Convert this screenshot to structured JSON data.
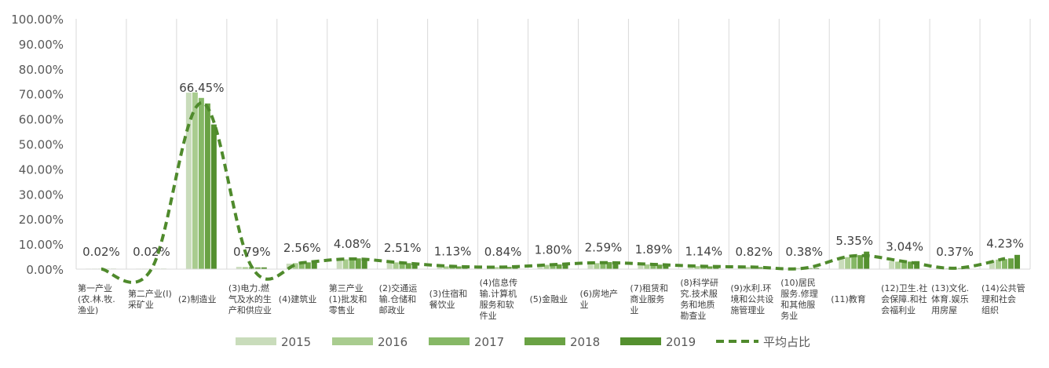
{
  "chart_data": {
    "type": "bar",
    "categories": [
      "第一产业\n(农.林.牧.\n渔业)",
      "第二产业(I)\n采矿业",
      "(2)制造业",
      "(3)电力.燃\n气及水的生\n产和供应业",
      "(4)建筑业",
      "第三产业\n(1)批发和\n零售业",
      "(2)交通运\n输.仓储和\n邮政业",
      "(3)住宿和\n餐饮业",
      "(4)信息传\n输.计算机\n服务和软\n件业",
      "(5)金融业",
      "(6)房地产\n业",
      "(7)租赁和\n商业服务\n业",
      "(8)科学研\n究.技术服\n务和地质\n勘查业",
      "(9)水利.环\n境和公共设\n施管理业",
      "(10)居民\n服务.修理\n和其他服\n务业",
      "(11)教育",
      "(12)卫生.社\n会保障.和社\n会福利业",
      "(13)文化.\n体育.娱乐\n用房屋",
      "(14)公共管\n理和社会\n组织"
    ],
    "series": [
      {
        "name": "2015",
        "color": "#c9dcbb",
        "values": [
          0.02,
          0.02,
          70.5,
          0.9,
          2.2,
          3.6,
          2.8,
          1.2,
          0.8,
          1.6,
          2.1,
          2.0,
          1.1,
          0.8,
          0.4,
          4.0,
          3.1,
          0.3,
          3.4
        ]
      },
      {
        "name": "2016",
        "color": "#a9cc8f",
        "values": [
          0.02,
          0.02,
          70.6,
          0.8,
          2.4,
          3.9,
          2.7,
          1.1,
          0.8,
          1.7,
          2.4,
          1.9,
          1.2,
          0.8,
          0.4,
          4.8,
          3.0,
          0.3,
          3.8
        ]
      },
      {
        "name": "2017",
        "color": "#86b866",
        "values": [
          0.02,
          0.02,
          68.4,
          0.8,
          2.5,
          4.2,
          2.5,
          1.1,
          0.8,
          1.8,
          2.6,
          1.9,
          1.1,
          0.8,
          0.4,
          5.3,
          2.9,
          0.4,
          4.0
        ]
      },
      {
        "name": "2018",
        "color": "#6aa244",
        "values": [
          0.02,
          0.02,
          66.2,
          0.7,
          2.7,
          4.3,
          2.4,
          1.1,
          0.9,
          1.9,
          2.8,
          1.8,
          1.1,
          0.8,
          0.4,
          5.6,
          3.0,
          0.4,
          4.3
        ]
      },
      {
        "name": "2019",
        "color": "#54902f",
        "values": [
          0.02,
          0.02,
          57.8,
          0.7,
          3.0,
          4.3,
          2.1,
          1.2,
          0.9,
          2.0,
          3.0,
          1.8,
          1.2,
          0.9,
          0.4,
          7.0,
          3.2,
          0.4,
          5.7
        ]
      }
    ],
    "average_line": {
      "name": "平均占比",
      "color": "#4f8a2c",
      "style": "dashed",
      "values": [
        0.02,
        0.02,
        66.45,
        0.79,
        2.56,
        4.08,
        2.51,
        1.13,
        0.84,
        1.8,
        2.59,
        1.89,
        1.14,
        0.82,
        0.38,
        5.35,
        3.04,
        0.37,
        4.23
      ],
      "labels": [
        "0.02%",
        "0.02%",
        "66.45%",
        "0.79%",
        "2.56%",
        "4.08%",
        "2.51%",
        "1.13%",
        "0.84%",
        "1.80%",
        "2.59%",
        "1.89%",
        "1.14%",
        "0.82%",
        "0.38%",
        "5.35%",
        "3.04%",
        "0.37%",
        "4.23%"
      ]
    },
    "ylim": [
      0,
      100
    ],
    "yticks": [
      "0.00%",
      "10.00%",
      "20.00%",
      "30.00%",
      "40.00%",
      "50.00%",
      "60.00%",
      "70.00%",
      "80.00%",
      "90.00%",
      "100.00%"
    ],
    "grid": "vertical",
    "legend_position": "bottom"
  }
}
